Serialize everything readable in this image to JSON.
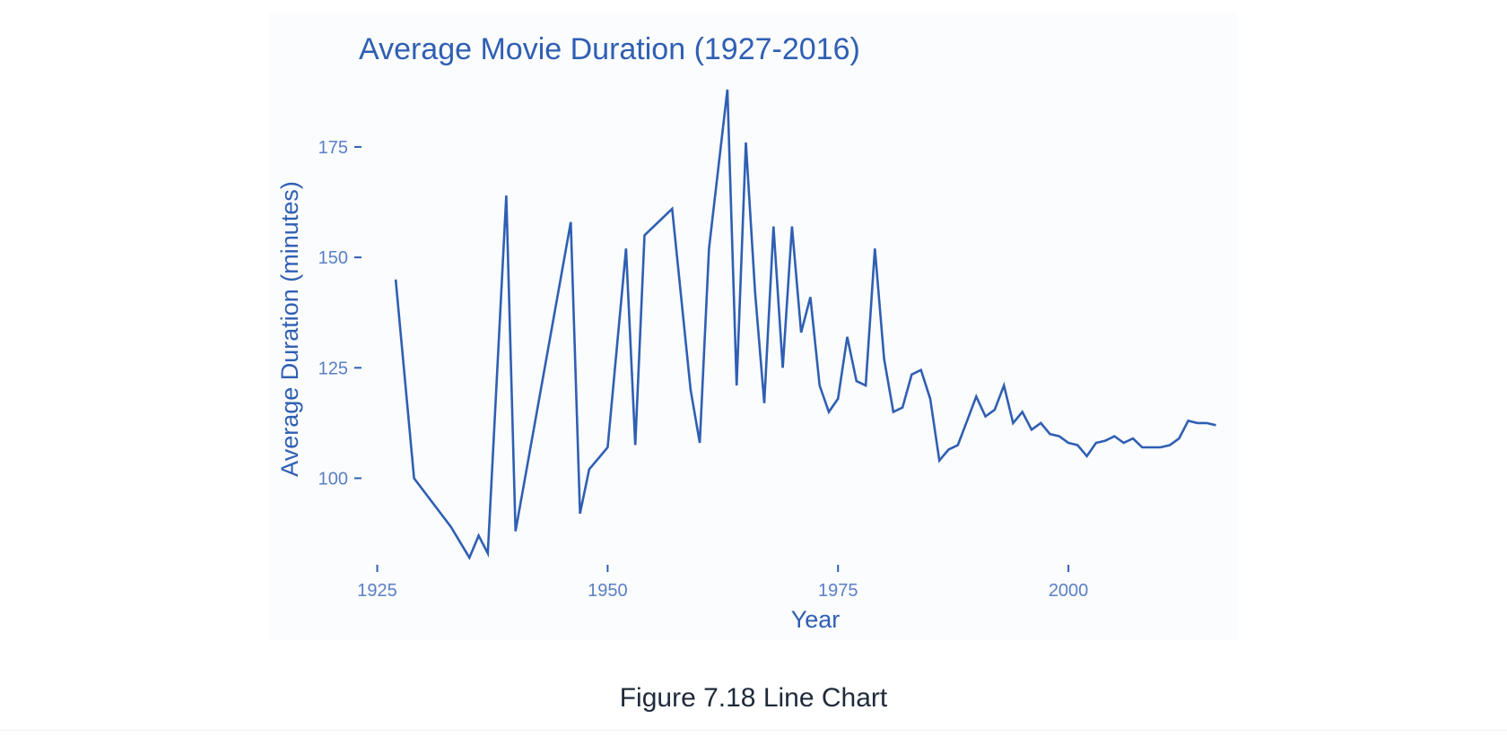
{
  "colors": {
    "line": "#2f5fb3",
    "text": "#2f5fb3",
    "tick_text": "#5a7fc6",
    "caption": "#1f2a3a",
    "panel_background": "#fbfcfd"
  },
  "caption": "Figure 7.18 Line Chart",
  "chart_data": {
    "type": "line",
    "title": "Average Movie Duration (1927-2016)",
    "xlabel": "Year",
    "ylabel": "Average Duration (minutes)",
    "xlim": [
      1923,
      2018
    ],
    "ylim": [
      80,
      190
    ],
    "xticks": [
      1925,
      1950,
      1975,
      2000
    ],
    "yticks": [
      100,
      125,
      150,
      175
    ],
    "grid": false,
    "legend": "none",
    "series": [
      {
        "name": "",
        "x": [
          1927,
          1929,
          1933,
          1935,
          1936,
          1937,
          1939,
          1940,
          1946,
          1947,
          1948,
          1950,
          1952,
          1953,
          1954,
          1957,
          1959,
          1960,
          1961,
          1963,
          1964,
          1965,
          1966,
          1967,
          1968,
          1969,
          1970,
          1971,
          1972,
          1973,
          1974,
          1975,
          1976,
          1977,
          1978,
          1979,
          1980,
          1981,
          1982,
          1983,
          1984,
          1985,
          1986,
          1987,
          1988,
          1989,
          1990,
          1991,
          1992,
          1993,
          1994,
          1995,
          1996,
          1997,
          1998,
          1999,
          2000,
          2001,
          2002,
          2003,
          2004,
          2005,
          2006,
          2007,
          2008,
          2009,
          2010,
          2011,
          2012,
          2013,
          2014,
          2015,
          2016
        ],
        "values": [
          145,
          100,
          89,
          82,
          87,
          83,
          164,
          88,
          158,
          92,
          102,
          107,
          152,
          107.5,
          155,
          161,
          120,
          108,
          152,
          188,
          121,
          176,
          142,
          117,
          157,
          125,
          157,
          133,
          141,
          121,
          115,
          118,
          132,
          122,
          121,
          152,
          127,
          115,
          116,
          123.5,
          124.5,
          118,
          104,
          106.5,
          107.5,
          113,
          118.5,
          114,
          115.5,
          121,
          112.5,
          115,
          111,
          112.5,
          110,
          109.5,
          108,
          107.5,
          105,
          108,
          108.5,
          109.5,
          108,
          109,
          107,
          107,
          107,
          107.5,
          109,
          113,
          112.5,
          112.5,
          112
        ]
      }
    ]
  }
}
